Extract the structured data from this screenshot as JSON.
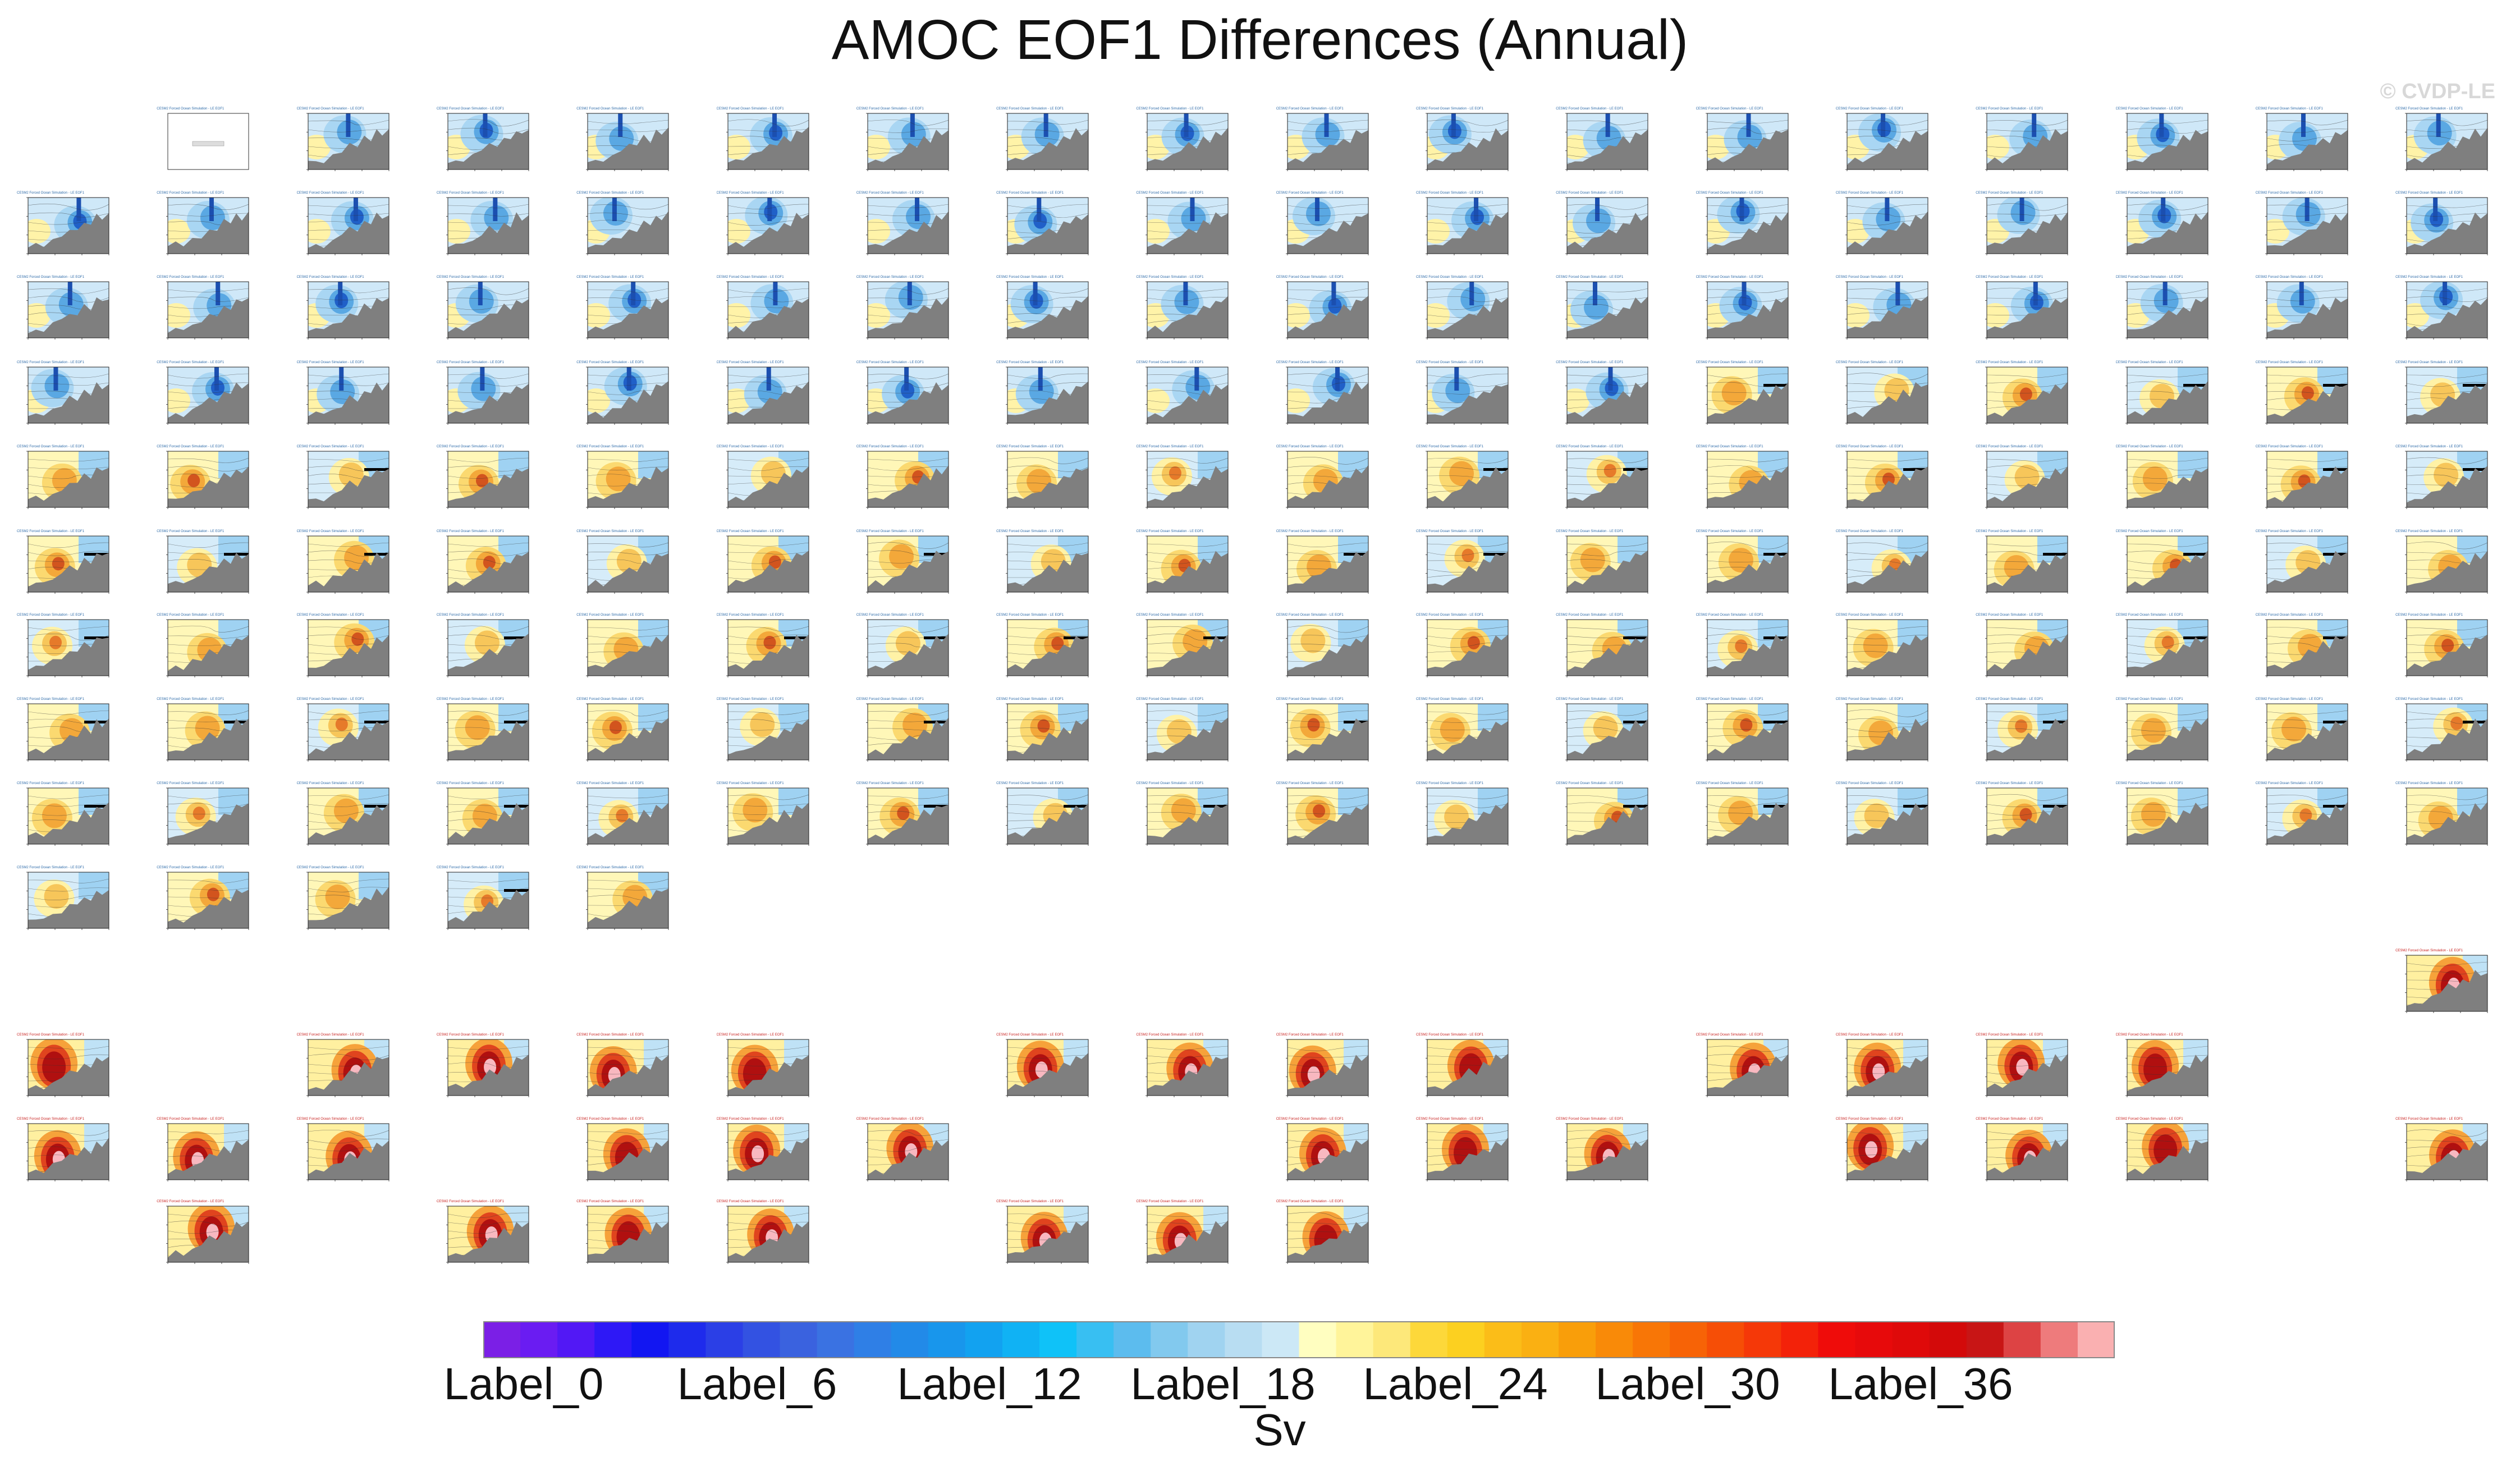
{
  "title": "AMOC EOF1 Differences (Annual)",
  "watermark": "© CVDP-LE",
  "chart_data": {
    "type": "heatmap",
    "title": "AMOC EOF1 Differences (Annual)",
    "description": "Grid of small latitude-depth AMOC EOF1 difference panels",
    "panel_grid": {
      "columns": 18,
      "upper_rows": [
        17,
        18,
        18,
        18,
        18,
        18,
        18,
        18,
        18,
        5
      ],
      "lower_group": {
        "rows": [
          [
            0,
            2,
            3,
            4,
            5,
            7,
            8,
            9,
            10,
            12,
            13,
            14,
            15
          ],
          [
            0,
            1,
            2,
            4,
            5,
            6,
            9,
            10,
            11,
            13,
            14,
            15,
            17
          ],
          [
            1,
            3,
            4,
            5,
            7,
            8,
            9
          ]
        ],
        "extra_top_right": true
      }
    },
    "colorbar": {
      "units": "Sv",
      "n_colors": 44,
      "tick_labels": [
        "Label_0",
        "Label_6",
        "Label_12",
        "Label_18",
        "Label_24",
        "Label_30",
        "Label_36"
      ],
      "colors": [
        "#7b1fe6",
        "#6a1cf2",
        "#5218f5",
        "#2e18f6",
        "#1216f2",
        "#1e2bec",
        "#2b3fe6",
        "#3352e2",
        "#3a62df",
        "#3a72e2",
        "#2f7fe6",
        "#228ae8",
        "#1896ec",
        "#12a2f0",
        "#10b2f4",
        "#0fc2f8",
        "#38bff2",
        "#5cbcee",
        "#82c9ee",
        "#a0d3f0",
        "#b8ddf2",
        "#cce8f6",
        "#fffec0",
        "#fff49a",
        "#fde87a",
        "#fdd83a",
        "#fcd020",
        "#fbbd18",
        "#fab012",
        "#f99e0a",
        "#f98a08",
        "#f87606",
        "#f76306",
        "#f64e06",
        "#f53808",
        "#f32209",
        "#ef0c0a",
        "#e70a0b",
        "#df0a0a",
        "#d30a0a",
        "#c81515",
        "#dd4344",
        "#ee7b7c",
        "#fab0b1"
      ]
    }
  },
  "panel_label": "CESM2 Forced Ocean Simulation - LE EOF1",
  "colorbar_labels": [
    "Label_0",
    "Label_6",
    "Label_12",
    "Label_18",
    "Label_24",
    "Label_30",
    "Label_36"
  ],
  "units": "Sv"
}
